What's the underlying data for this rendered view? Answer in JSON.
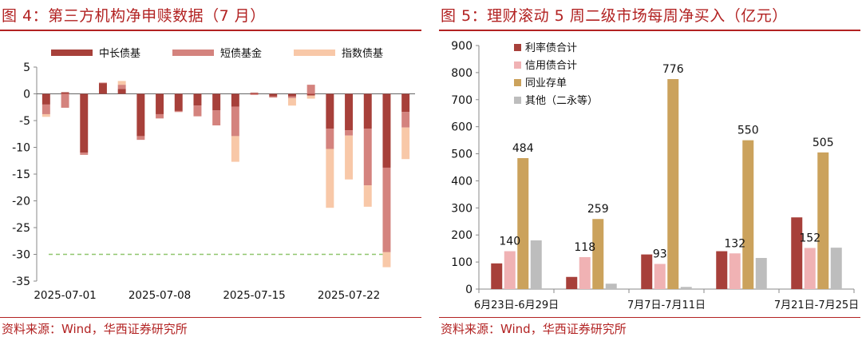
{
  "left": {
    "title": "图 4：第三方机构净申赎数据（7 月）",
    "source": "资料来源：Wind，华西证券研究所",
    "chart_data": {
      "type": "bar",
      "stacked": true,
      "title": "图 4：第三方机构净申赎数据（7 月）",
      "ylim": [
        -35,
        5
      ],
      "yticks": [
        5,
        0,
        -5,
        -10,
        -15,
        -20,
        -25,
        -30,
        -35
      ],
      "reference_line": -30,
      "dates": [
        "2025-06-30",
        "2025-07-01",
        "2025-07-02",
        "2025-07-03",
        "2025-07-04",
        "2025-07-07",
        "2025-07-08",
        "2025-07-09",
        "2025-07-10",
        "2025-07-11",
        "2025-07-14",
        "2025-07-15",
        "2025-07-16",
        "2025-07-17",
        "2025-07-18",
        "2025-07-21",
        "2025-07-22",
        "2025-07-23",
        "2025-07-24",
        "2025-07-25"
      ],
      "xtick_labels": [
        "2025-07-01",
        "2025-07-08",
        "2025-07-15",
        "2025-07-22"
      ],
      "xtick_index": [
        1,
        6,
        11,
        16
      ],
      "legend": [
        "中长债基",
        "短债基金",
        "指数债基"
      ],
      "colors": [
        "#a7403a",
        "#d4837e",
        "#f8c8a8"
      ],
      "series": [
        {
          "name": "中长债基",
          "values": [
            -2.0,
            0.3,
            -11.0,
            2.0,
            0.9,
            -7.9,
            -3.8,
            -3.2,
            -2.2,
            -3.1,
            -2.4,
            0.2,
            -0.5,
            -0.5,
            -0.3,
            -6.5,
            -6.8,
            -6.5,
            -13.8,
            -3.4
          ]
        },
        {
          "name": "短债基金",
          "values": [
            -1.8,
            -2.6,
            -0.4,
            0.1,
            0.8,
            -0.7,
            -0.8,
            -0.2,
            -2.0,
            -2.8,
            -5.5,
            -0.2,
            -0.2,
            -0.3,
            1.7,
            -3.8,
            -1.0,
            -10.6,
            -15.8,
            -2.9
          ]
        },
        {
          "name": "指数债基",
          "values": [
            -0.5,
            0,
            0,
            0,
            0.7,
            0,
            0,
            0,
            0,
            0,
            -4.8,
            0,
            0,
            -1.4,
            -0.6,
            -11.0,
            -8.2,
            -4.0,
            -2.8,
            -5.9
          ]
        }
      ]
    }
  },
  "right": {
    "title": "图 5：理财滚动 5 周二级市场每周净买入（亿元）",
    "source": "资料来源：Wind，华西证券研究所",
    "chart_data": {
      "type": "bar",
      "title": "图 5：理财滚动 5 周二级市场每周净买入（亿元）",
      "ylim": [
        0,
        900
      ],
      "yticks": [
        900,
        800,
        700,
        600,
        500,
        400,
        300,
        200,
        100,
        0
      ],
      "categories": [
        "6月23日-6月29日",
        "6月30日-7月6日",
        "7月7日-7月11日",
        "7月14日-7月18日",
        "7月21日-7月25日"
      ],
      "xtick_labels": [
        {
          "index": 0,
          "text": "6月23日-6月29日"
        },
        {
          "index": 2,
          "text": "7月7日-7月11日"
        },
        {
          "index": 4,
          "text": "7月21日-7月25日"
        }
      ],
      "colors": [
        "#a7403a",
        "#f0b2b4",
        "#cba25c",
        "#bdbdbd"
      ],
      "series": [
        {
          "name": "利率债合计",
          "values": [
            95,
            45,
            128,
            140,
            265
          ]
        },
        {
          "name": "信用债合计",
          "values": [
            140,
            118,
            93,
            132,
            152
          ]
        },
        {
          "name": "同业存单",
          "values": [
            484,
            259,
            776,
            550,
            505
          ]
        },
        {
          "name": "其他（二永等）",
          "values": [
            180,
            20,
            8,
            115,
            153
          ]
        }
      ],
      "data_labels": [
        {
          "series": 1,
          "index": 0,
          "text": "140"
        },
        {
          "series": 2,
          "index": 0,
          "text": "484"
        },
        {
          "series": 1,
          "index": 1,
          "text": "118"
        },
        {
          "series": 2,
          "index": 1,
          "text": "259"
        },
        {
          "series": 1,
          "index": 2,
          "text": "93"
        },
        {
          "series": 2,
          "index": 2,
          "text": "776"
        },
        {
          "series": 1,
          "index": 3,
          "text": "132"
        },
        {
          "series": 2,
          "index": 3,
          "text": "550"
        },
        {
          "series": 1,
          "index": 4,
          "text": "152"
        },
        {
          "series": 2,
          "index": 4,
          "text": "505"
        }
      ]
    }
  }
}
